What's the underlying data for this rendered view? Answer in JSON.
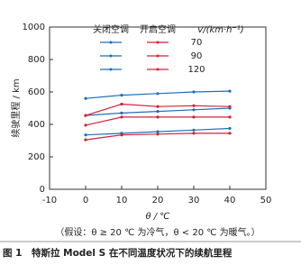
{
  "chart_data": {
    "type": "line",
    "x": [
      0,
      10,
      20,
      30,
      40
    ],
    "xlim": [
      -10,
      50
    ],
    "xticks": [
      -10,
      0,
      10,
      20,
      30,
      40,
      50
    ],
    "ylim": [
      0,
      1000
    ],
    "yticks": [
      0,
      200,
      400,
      600,
      800,
      1000
    ],
    "xlabel": "θ / ℃",
    "ylabel": "续驶里程 / km",
    "speed_title": "v/(km·h⁻¹)",
    "speeds": [
      "70",
      "90",
      "120"
    ],
    "series": [
      {
        "name": "关闭空调",
        "color": "#1f6fb5",
        "values": [
          [
            560,
            580,
            590,
            600,
            605
          ],
          [
            455,
            470,
            480,
            490,
            500
          ],
          [
            335,
            345,
            355,
            365,
            375
          ]
        ]
      },
      {
        "name": "开启空调",
        "color": "#d6213a",
        "values": [
          [
            455,
            525,
            510,
            515,
            510
          ],
          [
            395,
            445,
            445,
            445,
            445
          ],
          [
            305,
            335,
            340,
            345,
            345
          ]
        ]
      }
    ],
    "note": "（假设：θ ≥ 20 ℃ 为冷气，θ < 20 ℃ 为暖气。）",
    "caption": "图 1　特斯拉 Model S 在不同温度状况下的续航里程"
  }
}
